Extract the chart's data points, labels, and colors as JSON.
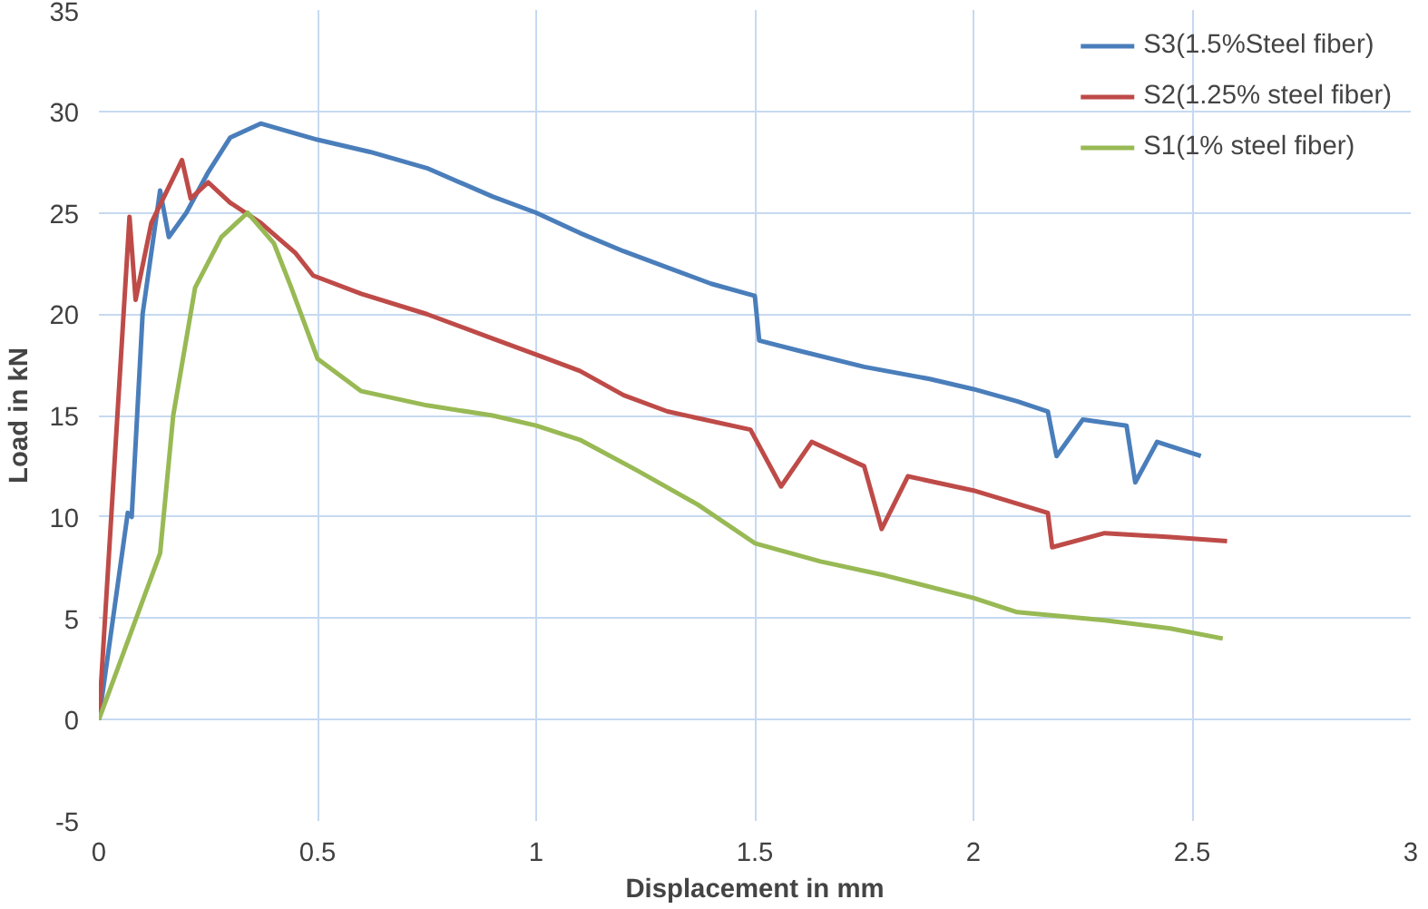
{
  "chart_data": {
    "type": "line",
    "xlabel": "Displacement in mm",
    "ylabel": "Load in kN",
    "xlim": [
      0,
      3
    ],
    "ylim": [
      -5,
      35
    ],
    "xticks": [
      0,
      0.5,
      1,
      1.5,
      2,
      2.5,
      3
    ],
    "yticks": [
      -5,
      0,
      5,
      10,
      15,
      20,
      25,
      30,
      35
    ],
    "grid": true,
    "legend": "top right",
    "marker": "none",
    "line_style": "solid",
    "series": [
      {
        "name": "S3(1.5%Steel fiber)",
        "color": "#4a7ebb",
        "x": [
          0,
          0.066,
          0.075,
          0.1,
          0.14,
          0.16,
          0.2,
          0.25,
          0.3,
          0.37,
          0.5,
          0.62,
          0.75,
          0.9,
          1.0,
          1.1,
          1.2,
          1.3,
          1.4,
          1.5,
          1.51,
          1.6,
          1.75,
          1.9,
          2.0,
          2.1,
          2.17,
          2.19,
          2.25,
          2.35,
          2.37,
          2.42,
          2.52
        ],
        "values": [
          0,
          10.2,
          10,
          20,
          26.1,
          23.8,
          25,
          27,
          28.7,
          29.4,
          28.6,
          28,
          27.2,
          25.8,
          25,
          24,
          23.1,
          22.3,
          21.5,
          20.9,
          18.7,
          18.2,
          17.4,
          16.8,
          16.3,
          15.7,
          15.2,
          13.0,
          14.8,
          14.5,
          11.7,
          13.7,
          13.0
        ]
      },
      {
        "name": "S2(1.25% steel fiber)",
        "color": "#be4b48",
        "x": [
          0,
          0.07,
          0.084,
          0.12,
          0.19,
          0.21,
          0.25,
          0.3,
          0.37,
          0.45,
          0.49,
          0.6,
          0.75,
          0.9,
          1.0,
          1.1,
          1.2,
          1.3,
          1.49,
          1.56,
          1.63,
          1.75,
          1.79,
          1.85,
          2.0,
          2.17,
          2.18,
          2.3,
          2.45,
          2.58
        ],
        "values": [
          0,
          24.8,
          20.7,
          24.5,
          27.6,
          25.7,
          26.5,
          25.5,
          24.5,
          23,
          21.9,
          21,
          20,
          18.8,
          18,
          17.2,
          16,
          15.2,
          14.3,
          11.5,
          13.7,
          12.5,
          9.4,
          12,
          11.3,
          10.2,
          8.5,
          9.2,
          9,
          8.8
        ]
      },
      {
        "name": "S1(1% steel fiber)",
        "color": "#98b954",
        "x": [
          0,
          0.14,
          0.17,
          0.22,
          0.28,
          0.34,
          0.4,
          0.44,
          0.5,
          0.6,
          0.75,
          0.9,
          1.0,
          1.1,
          1.23,
          1.37,
          1.5,
          1.65,
          1.8,
          2.0,
          2.1,
          2.3,
          2.45,
          2.57
        ],
        "values": [
          0,
          8.2,
          15,
          21.3,
          23.8,
          25,
          23.5,
          21.3,
          17.8,
          16.2,
          15.5,
          15,
          14.5,
          13.8,
          12.3,
          10.6,
          8.7,
          7.8,
          7.1,
          6.0,
          5.3,
          4.9,
          4.5,
          4.0
        ]
      }
    ]
  }
}
